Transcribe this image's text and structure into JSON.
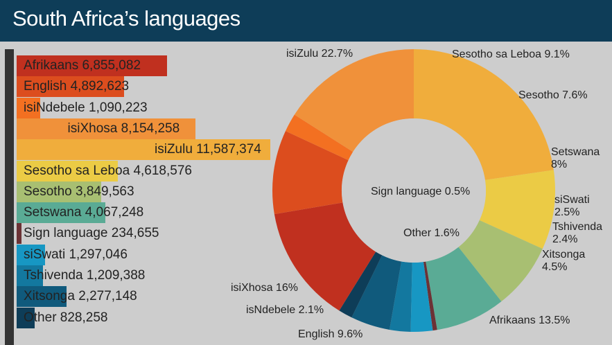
{
  "header": {
    "title": "South Africa’s languages"
  },
  "chart_data": [
    {
      "type": "bar",
      "orientation": "horizontal",
      "categories": [
        "Afrikaans",
        "English",
        "isiNdebele",
        "isiXhosa",
        "isiZulu",
        "Sesotho sa Leboa",
        "Sesotho",
        "Setswana",
        "Sign language",
        "siSwati",
        "Tshivenda",
        "Xitsonga",
        "Other"
      ],
      "values": [
        6855082,
        4892623,
        1090223,
        8154258,
        11587374,
        4618576,
        3849563,
        4067248,
        234655,
        1297046,
        1209388,
        2277148,
        828258
      ],
      "labels": [
        "Afrikaans 6,855,082",
        "English 4,892,623",
        "isiNdebele 1,090,223",
        "isiXhosa 8,154,258",
        "isiZulu 11,587,374",
        "Sesotho sa Leboa 4,618,576",
        "Sesotho 3,849,563",
        "Setswana 4,067,248",
        "Sign language 234,655",
        "siSwati 1,297,046",
        "Tshivenda 1,209,388",
        "Xitsonga 2,277,148",
        "Other 828,258"
      ],
      "colors": [
        "#c0301f",
        "#dc4d1e",
        "#f37021",
        "#f0913a",
        "#f0ad3c",
        "#ebcb45",
        "#a8bf72",
        "#5aab95",
        "#6b3235",
        "#1797c3",
        "#13789f",
        "#105a7c",
        "#0e3d58"
      ]
    },
    {
      "type": "pie",
      "donut": true,
      "order": [
        "isiZulu",
        "Sesotho sa Leboa",
        "Sesotho",
        "Setswana",
        "Sign language",
        "siSwati",
        "Tshivenda",
        "Xitsonga",
        "Other",
        "Afrikaans",
        "English",
        "isNdebele",
        "isiXhosa"
      ],
      "values": [
        22.7,
        9.1,
        7.6,
        8,
        0.5,
        2.5,
        2.4,
        4.5,
        1.6,
        13.5,
        9.6,
        2.1,
        16
      ],
      "colors": [
        "#f0ad3c",
        "#ebcb45",
        "#a8bf72",
        "#5aab95",
        "#6b3235",
        "#1797c3",
        "#13789f",
        "#105a7c",
        "#0e3d58",
        "#c0301f",
        "#dc4d1e",
        "#f37021",
        "#f0913a"
      ],
      "labels": [
        "isiZulu 22.7%",
        "Sesotho sa Leboa 9.1%",
        "Sesotho 7.6%",
        "Setswana\n8%",
        "Sign language 0.5%",
        "siSwati\n2.5%",
        "Tshivenda\n2.4%",
        "Xitsonga\n4.5%",
        "Other 1.6%",
        "Afrikaans 13.5%",
        "English 9.6%",
        "isNdebele 2.1%",
        "isiXhosa 16%"
      ]
    }
  ]
}
